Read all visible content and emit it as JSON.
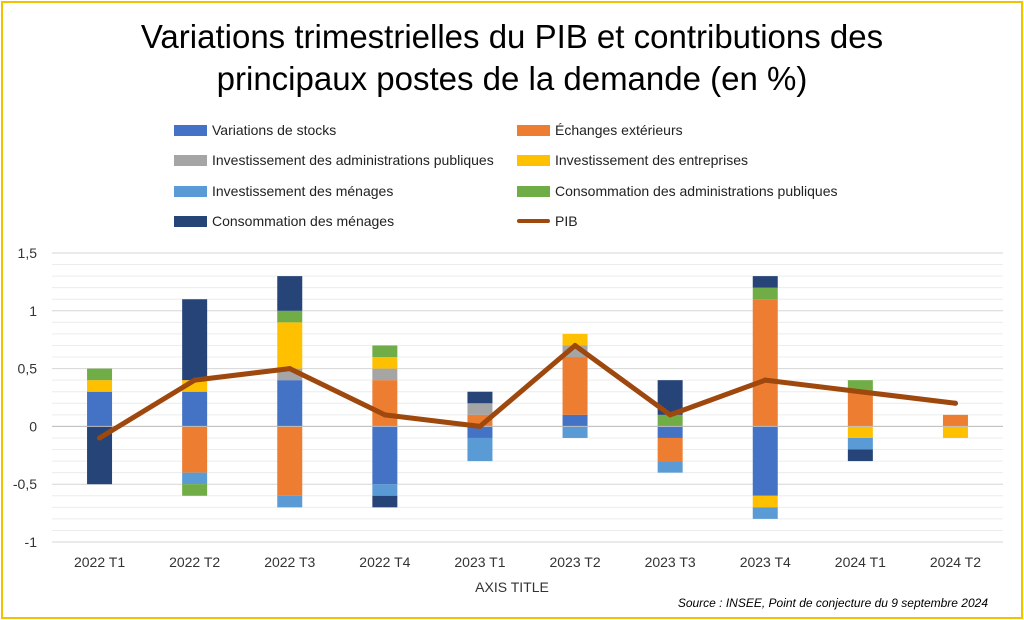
{
  "chart_data": {
    "type": "bar",
    "title": "Variations trimestrielles du PIB et contributions des principaux postes de la demande (en %)",
    "xlabel": "AXIS TITLE",
    "ylabel": "",
    "ylim": [
      -1,
      1.5
    ],
    "yticks": [
      -1,
      -0.5,
      0,
      0.5,
      1,
      1.5
    ],
    "ytick_labels": [
      "-1",
      "-0,5",
      "0",
      "0,5",
      "1",
      "1,5"
    ],
    "grid": true,
    "stacked": true,
    "legend_position": "top",
    "categories": [
      "2022 T1",
      "2022 T2",
      "2022 T3",
      "2022 T4",
      "2023 T1",
      "2023 T2",
      "2023 T3",
      "2023 T4",
      "2024 T1",
      "2024 T2"
    ],
    "series": [
      {
        "name": "Variations de stocks",
        "color": "#4472c4",
        "values": [
          0.3,
          0.3,
          0.4,
          -0.5,
          -0.1,
          0.1,
          -0.1,
          -0.6,
          0,
          0
        ]
      },
      {
        "name": "Échanges extérieurs",
        "color": "#ed7d31",
        "values": [
          0,
          -0.4,
          -0.6,
          0.4,
          0.1,
          0.5,
          -0.2,
          1.1,
          0.3,
          0.1
        ]
      },
      {
        "name": "Investissement des administrations publiques",
        "color": "#a5a5a5",
        "values": [
          0,
          0,
          0.1,
          0.1,
          0.1,
          0.1,
          0,
          0,
          0,
          0
        ]
      },
      {
        "name": "Investissement des entreprises",
        "color": "#ffc000",
        "values": [
          0.1,
          0.1,
          0.4,
          0.1,
          0,
          0.1,
          0,
          -0.1,
          -0.1,
          -0.1
        ]
      },
      {
        "name": "Investissement des ménages",
        "color": "#5b9bd5",
        "values": [
          0,
          -0.1,
          -0.1,
          -0.1,
          -0.2,
          -0.1,
          -0.1,
          -0.1,
          -0.1,
          0
        ]
      },
      {
        "name": "Consommation des administrations publiques",
        "color": "#70ad47",
        "values": [
          0.1,
          -0.1,
          0.1,
          0.1,
          0,
          0,
          0.1,
          0.1,
          0.1,
          0
        ]
      },
      {
        "name": "Consommation des ménages",
        "color": "#264478",
        "values": [
          -0.5,
          0.7,
          0.3,
          -0.1,
          0.1,
          0,
          0.3,
          0.1,
          -0.1,
          0
        ]
      }
    ],
    "line": {
      "name": "PIB",
      "color": "#9e480e",
      "values": [
        -0.1,
        0.4,
        0.5,
        0.1,
        0,
        0.7,
        0.1,
        0.4,
        0.3,
        0.2
      ]
    },
    "source": "Source : INSEE, Point de conjecture du 9 septembre 2024"
  },
  "title_line1": "Variations trimestrielles du PIB et contributions des",
  "title_line2": "principaux postes de la demande (en %)"
}
